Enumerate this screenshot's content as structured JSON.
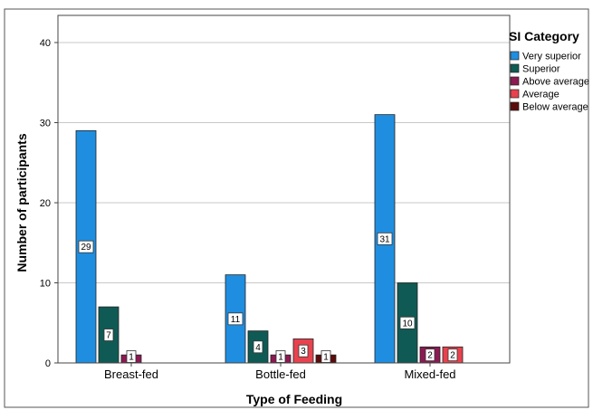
{
  "chart_data": {
    "type": "bar",
    "xlabel": "Type of Feeding",
    "ylabel": "Number of participants",
    "ylim": [
      0,
      40
    ],
    "yticks": [
      0,
      10,
      20,
      30,
      40
    ],
    "grid": true,
    "legend_placement": "top-right",
    "categories": [
      "Breast-fed",
      "Bottle-fed",
      "Mixed-fed"
    ],
    "legend_title": "SI Category",
    "series": [
      {
        "name": "Very superior",
        "color": "#1f8ee0",
        "values": [
          29,
          11,
          31
        ]
      },
      {
        "name": "Superior",
        "color": "#0f5a55",
        "values": [
          7,
          4,
          10
        ]
      },
      {
        "name": "Above average",
        "color": "#8b1a52",
        "values": [
          1,
          1,
          2
        ]
      },
      {
        "name": "Average",
        "color": "#e8424e",
        "values": [
          null,
          3,
          2
        ]
      },
      {
        "name": "Below average",
        "color": "#5a0c0c",
        "values": [
          null,
          1,
          null
        ]
      }
    ]
  }
}
